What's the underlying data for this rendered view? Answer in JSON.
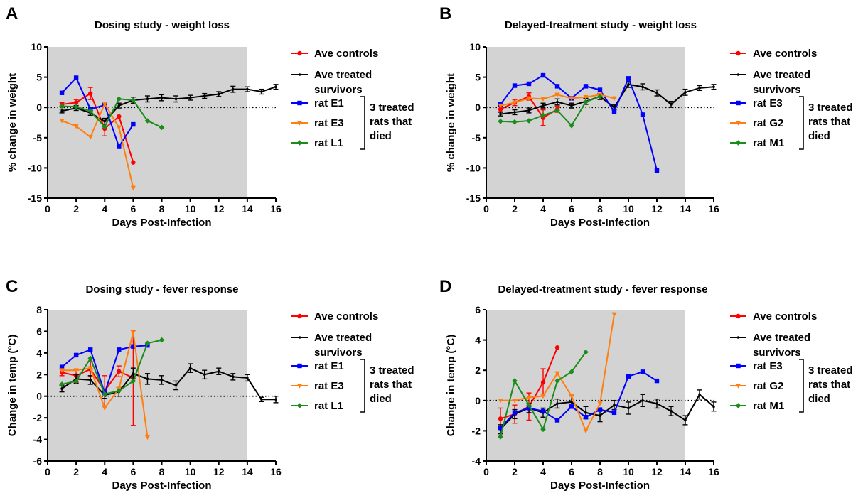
{
  "chart_data": [
    {
      "panel_letter": "A",
      "type": "line",
      "title": "Dosing study - weight loss",
      "xlabel": "Days Post-Infection",
      "ylabel": "% change in weight",
      "xlim": [
        0,
        16
      ],
      "ylim": [
        -15,
        10
      ],
      "xticks": [
        0,
        2,
        4,
        6,
        8,
        10,
        12,
        14,
        16
      ],
      "yticks": [
        -15,
        -10,
        -5,
        0,
        5,
        10
      ],
      "shaded_x_range": [
        0,
        14
      ],
      "reference_line_y": 0,
      "bracket_label_lines": [
        "3 treated",
        "rats that",
        "died"
      ],
      "series": [
        {
          "name": "Ave controls",
          "color": "#ff0000",
          "marker": "circle",
          "x": [
            1,
            2,
            3,
            4,
            5,
            6
          ],
          "y": [
            0.5,
            0.8,
            2.3,
            -3.5,
            -1.5,
            -9.1
          ],
          "err": [
            0.3,
            0.5,
            1.0,
            1.2,
            0,
            0
          ]
        },
        {
          "name": "Ave treated",
          "name_line2": "survivors",
          "color": "#000000",
          "marker": "small-circle",
          "x": [
            1,
            2,
            3,
            4,
            5,
            6,
            7,
            8,
            9,
            10,
            11,
            12,
            13,
            14,
            15,
            16
          ],
          "y": [
            -0.6,
            -0.1,
            -0.9,
            -2.3,
            0.3,
            1.2,
            1.4,
            1.6,
            1.4,
            1.6,
            1.9,
            2.2,
            3.0,
            3.0,
            2.6,
            3.4
          ],
          "err": [
            0.3,
            0.4,
            0.4,
            0.5,
            0.4,
            0.5,
            0.5,
            0.5,
            0.5,
            0.4,
            0.4,
            0.4,
            0.5,
            0.4,
            0.4,
            0.4
          ]
        },
        {
          "name": "rat E1",
          "color": "#0000ff",
          "marker": "square",
          "x": [
            1,
            2,
            3,
            4,
            5,
            6
          ],
          "y": [
            2.4,
            4.9,
            -0.3,
            0.4,
            -6.5,
            -2.8
          ]
        },
        {
          "name": "rat E3",
          "color": "#ff7f0e",
          "marker": "triangle-down",
          "x": [
            1,
            2,
            3,
            4,
            5,
            6
          ],
          "y": [
            -2.2,
            -3.1,
            -4.9,
            0.6,
            -3.3,
            -13.3
          ]
        },
        {
          "name": "rat L1",
          "color": "#1a8c1a",
          "marker": "diamond",
          "x": [
            1,
            2,
            3,
            4,
            5,
            6,
            7,
            8
          ],
          "y": [
            0.2,
            0.1,
            -0.6,
            -3.2,
            1.4,
            1.2,
            -2.2,
            -3.3
          ]
        }
      ]
    },
    {
      "panel_letter": "B",
      "type": "line",
      "title": "Delayed-treatment study - weight loss",
      "xlabel": "Days Post-Infection",
      "ylabel": "% change in weight",
      "xlim": [
        0,
        16
      ],
      "ylim": [
        -15,
        10
      ],
      "xticks": [
        0,
        2,
        4,
        6,
        8,
        10,
        12,
        14,
        16
      ],
      "yticks": [
        -15,
        -10,
        -5,
        0,
        5,
        10
      ],
      "shaded_x_range": [
        0,
        14
      ],
      "reference_line_y": 0,
      "bracket_label_lines": [
        "3 treated",
        "rats that",
        "died"
      ],
      "series": [
        {
          "name": "Ave controls",
          "color": "#ff0000",
          "marker": "circle",
          "x": [
            1,
            2,
            3,
            4,
            5
          ],
          "y": [
            -0.3,
            0.8,
            1.8,
            -1.7,
            -0.3
          ],
          "err": [
            0.4,
            0.5,
            0.6,
            1.3,
            0.5
          ]
        },
        {
          "name": "Ave treated",
          "name_line2": "survivors",
          "color": "#000000",
          "marker": "small-circle",
          "x": [
            1,
            2,
            3,
            4,
            5,
            6,
            7,
            8,
            9,
            10,
            11,
            12,
            13,
            14,
            15,
            16
          ],
          "y": [
            -1.1,
            -0.8,
            -0.5,
            0.3,
            0.9,
            0.3,
            1.0,
            1.8,
            0.0,
            3.8,
            3.4,
            2.4,
            0.5,
            2.5,
            3.2,
            3.4
          ],
          "err": [
            0.3,
            0.4,
            0.4,
            0.4,
            0.5,
            0.4,
            0.5,
            0.5,
            0.4,
            0.5,
            0.5,
            0.5,
            0.5,
            0.5,
            0.4,
            0.4
          ]
        },
        {
          "name": "rat E3",
          "color": "#0000ff",
          "marker": "square",
          "x": [
            1,
            2,
            3,
            4,
            5,
            6,
            7,
            8,
            9,
            10,
            11,
            12
          ],
          "y": [
            0.5,
            3.6,
            3.9,
            5.3,
            3.5,
            1.5,
            3.5,
            2.9,
            -0.7,
            4.8,
            -1.2,
            -10.4
          ]
        },
        {
          "name": "rat G2",
          "color": "#ff7f0e",
          "marker": "triangle-down",
          "x": [
            1,
            2,
            3,
            4,
            5,
            6,
            7,
            8,
            9
          ],
          "y": [
            0.3,
            0.8,
            1.5,
            1.4,
            2.1,
            1.5,
            1.7,
            2.1,
            1.5
          ]
        },
        {
          "name": "rat M1",
          "color": "#1a8c1a",
          "marker": "diamond",
          "x": [
            1,
            2,
            3,
            4,
            5,
            6,
            7,
            8
          ],
          "y": [
            -2.3,
            -2.4,
            -2.2,
            -1.3,
            -0.5,
            -3.0,
            0.9,
            1.8
          ]
        }
      ]
    },
    {
      "panel_letter": "C",
      "type": "line",
      "title": "Dosing study - fever response",
      "xlabel": "Days Post-Infection",
      "ylabel": "Change in temp (°C)",
      "xlim": [
        0,
        16
      ],
      "ylim": [
        -6,
        8
      ],
      "xticks": [
        0,
        2,
        4,
        6,
        8,
        10,
        12,
        14,
        16
      ],
      "yticks": [
        -6,
        -4,
        -2,
        0,
        2,
        4,
        6,
        8
      ],
      "shaded_x_range": [
        0,
        14
      ],
      "reference_line_y": 0,
      "bracket_label_lines": [
        "3 treated",
        "rats that",
        "died"
      ],
      "series": [
        {
          "name": "Ave controls",
          "color": "#ff0000",
          "marker": "circle",
          "x": [
            1,
            2,
            3,
            4,
            5,
            6
          ],
          "y": [
            2.2,
            1.9,
            2.5,
            0.5,
            2.3,
            1.7
          ],
          "err": [
            0.3,
            0.6,
            0.7,
            1.4,
            0.5,
            4.4
          ]
        },
        {
          "name": "Ave treated",
          "name_line2": "survivors",
          "color": "#000000",
          "marker": "small-circle",
          "x": [
            1,
            2,
            3,
            4,
            5,
            6,
            7,
            8,
            9,
            10,
            11,
            12,
            13,
            14,
            15,
            16
          ],
          "y": [
            0.7,
            1.6,
            1.5,
            0.1,
            0.4,
            2.1,
            1.6,
            1.5,
            1.0,
            2.6,
            2.0,
            2.3,
            1.8,
            1.7,
            -0.3,
            -0.3
          ],
          "err": [
            0.3,
            0.4,
            0.4,
            0.3,
            0.4,
            0.5,
            0.5,
            0.4,
            0.4,
            0.4,
            0.4,
            0.3,
            0.3,
            0.3,
            0.2,
            0.3
          ]
        },
        {
          "name": "rat E1",
          "color": "#0000ff",
          "marker": "square",
          "x": [
            1,
            2,
            3,
            4,
            5,
            6,
            7
          ],
          "y": [
            2.7,
            3.8,
            4.3,
            0.3,
            4.3,
            4.6,
            4.7
          ]
        },
        {
          "name": "rat E3",
          "color": "#ff7f0e",
          "marker": "triangle-down",
          "x": [
            1,
            2,
            3,
            4,
            5,
            6,
            7
          ],
          "y": [
            2.4,
            2.4,
            2.6,
            -1.1,
            0.7,
            5.9,
            -3.8
          ]
        },
        {
          "name": "rat L1",
          "color": "#1a8c1a",
          "marker": "diamond",
          "x": [
            1,
            2,
            3,
            4,
            5,
            6,
            7,
            8
          ],
          "y": [
            1.1,
            1.4,
            3.5,
            0.2,
            0.5,
            1.4,
            4.9,
            5.2
          ]
        }
      ]
    },
    {
      "panel_letter": "D",
      "type": "line",
      "title": "Delayed-treatment study - fever response",
      "xlabel": "Days Post-Infection",
      "ylabel": "Change in temp (°C)",
      "xlim": [
        0,
        16
      ],
      "ylim": [
        -4,
        6
      ],
      "xticks": [
        0,
        2,
        4,
        6,
        8,
        10,
        12,
        14,
        16
      ],
      "yticks": [
        -4,
        -2,
        0,
        2,
        4,
        6
      ],
      "shaded_x_range": [
        0,
        14
      ],
      "reference_line_y": 0,
      "bracket_label_lines": [
        "3 treated",
        "rats that",
        "died"
      ],
      "series": [
        {
          "name": "Ave controls",
          "color": "#ff0000",
          "marker": "circle",
          "x": [
            1,
            2,
            3,
            4,
            5
          ],
          "y": [
            -1.2,
            -0.9,
            -0.4,
            1.2,
            3.5
          ],
          "err": [
            0.7,
            0.6,
            0.9,
            0.9,
            0
          ]
        },
        {
          "name": "Ave treated",
          "name_line2": "survivors",
          "color": "#000000",
          "marker": "small-circle",
          "x": [
            1,
            2,
            3,
            4,
            5,
            6,
            7,
            8,
            9,
            10,
            11,
            12,
            13,
            14,
            15,
            16
          ],
          "y": [
            -1.9,
            -0.9,
            -0.5,
            -0.8,
            -0.2,
            -0.1,
            -0.8,
            -1.0,
            -0.3,
            -0.5,
            0.0,
            -0.2,
            -0.7,
            -1.3,
            0.4,
            -0.4
          ],
          "err": [
            0.3,
            0.3,
            0.3,
            0.3,
            0.3,
            0.4,
            0.4,
            0.4,
            0.3,
            0.4,
            0.4,
            0.3,
            0.3,
            0.3,
            0.3,
            0.3
          ]
        },
        {
          "name": "rat E3",
          "color": "#0000ff",
          "marker": "square",
          "x": [
            1,
            2,
            3,
            4,
            5,
            6,
            7,
            8,
            9,
            10,
            11,
            12
          ],
          "y": [
            -1.8,
            -0.8,
            -0.5,
            -0.7,
            -1.3,
            -0.4,
            -1.1,
            -0.6,
            -0.8,
            1.6,
            1.9,
            1.3
          ]
        },
        {
          "name": "rat G2",
          "color": "#ff7f0e",
          "marker": "triangle-down",
          "x": [
            1,
            2,
            3,
            4,
            5,
            6,
            7,
            8,
            9
          ],
          "y": [
            0.0,
            0.0,
            0.2,
            0.3,
            1.8,
            0.3,
            -2.0,
            -0.2,
            5.7
          ]
        },
        {
          "name": "rat M1",
          "color": "#1a8c1a",
          "marker": "diamond",
          "x": [
            1,
            2,
            3,
            4,
            5,
            6,
            7
          ],
          "y": [
            -2.4,
            1.3,
            -0.3,
            -1.9,
            1.3,
            1.9,
            3.2
          ]
        }
      ]
    }
  ]
}
